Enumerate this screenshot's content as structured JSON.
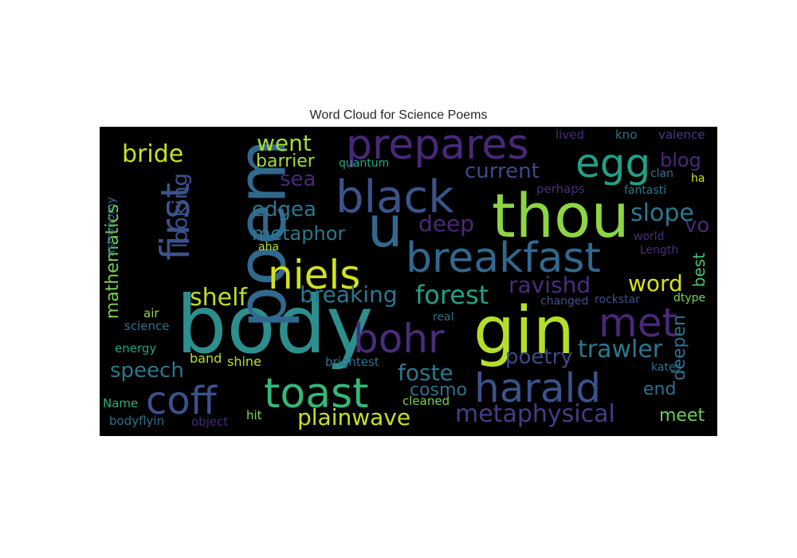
{
  "chart_data": {
    "type": "wordcloud",
    "title": "Word Cloud for Science Poems",
    "background": "#000000",
    "words": [
      {
        "text": "body",
        "size": 1.0,
        "color": "#2c8f8e",
        "rotate": 0
      },
      {
        "text": "thou",
        "size": 0.92,
        "color": "#8dd544",
        "rotate": 0
      },
      {
        "text": "gin",
        "size": 0.9,
        "color": "#b5de2b",
        "rotate": 0
      },
      {
        "text": "poem",
        "size": 0.9,
        "color": "#31688e",
        "rotate": 90
      },
      {
        "text": "u",
        "size": 0.88,
        "color": "#31688e",
        "rotate": 0
      },
      {
        "text": "black",
        "size": 0.7,
        "color": "#3b528b",
        "rotate": 0
      },
      {
        "text": "prepares",
        "size": 0.7,
        "color": "#482878",
        "rotate": 0
      },
      {
        "text": "breakfast",
        "size": 0.68,
        "color": "#31688e",
        "rotate": 0
      },
      {
        "text": "toast",
        "size": 0.66,
        "color": "#35b779",
        "rotate": 0
      },
      {
        "text": "harald",
        "size": 0.64,
        "color": "#3b528b",
        "rotate": 0
      },
      {
        "text": "coff",
        "size": 0.64,
        "color": "#3b528b",
        "rotate": 0
      },
      {
        "text": "met",
        "size": 0.64,
        "color": "#482878",
        "rotate": 0
      },
      {
        "text": "niels",
        "size": 0.6,
        "color": "#d2e21b",
        "rotate": 0
      },
      {
        "text": "egg",
        "size": 0.6,
        "color": "#1fa187",
        "rotate": 0
      },
      {
        "text": "first",
        "size": 0.6,
        "color": "#3b528b",
        "rotate": 90
      },
      {
        "text": "bohr",
        "size": 0.6,
        "color": "#472d7b",
        "rotate": 0
      },
      {
        "text": "metaphysical",
        "size": 0.38,
        "color": "#433e85",
        "rotate": 0
      },
      {
        "text": "forest",
        "size": 0.36,
        "color": "#1fa187",
        "rotate": 0
      },
      {
        "text": "foste",
        "size": 0.36,
        "color": "#2a788e",
        "rotate": 0
      },
      {
        "text": "trawler",
        "size": 0.36,
        "color": "#2a788e",
        "rotate": 0
      },
      {
        "text": "ravishd",
        "size": 0.36,
        "color": "#472d7b",
        "rotate": 0
      },
      {
        "text": "slope",
        "size": 0.36,
        "color": "#2a788e",
        "rotate": 0
      },
      {
        "text": "bride",
        "size": 0.36,
        "color": "#c8e020",
        "rotate": 0
      },
      {
        "text": "shelf",
        "size": 0.36,
        "color": "#bddf26",
        "rotate": 0
      },
      {
        "text": "plainwave",
        "size": 0.33,
        "color": "#c8e020",
        "rotate": 0
      },
      {
        "text": "speech",
        "size": 0.33,
        "color": "#2a788e",
        "rotate": 0
      },
      {
        "text": "breaking",
        "size": 0.33,
        "color": "#2a788e",
        "rotate": 0
      },
      {
        "text": "went",
        "size": 0.33,
        "color": "#a5db36",
        "rotate": 0
      },
      {
        "text": "deep",
        "size": 0.33,
        "color": "#482878",
        "rotate": 0
      },
      {
        "text": "current",
        "size": 0.3,
        "color": "#3e4989",
        "rotate": 0
      },
      {
        "text": "edgea",
        "size": 0.3,
        "color": "#2a788e",
        "rotate": 0
      },
      {
        "text": "poetry",
        "size": 0.3,
        "color": "#3e4989",
        "rotate": 0
      },
      {
        "text": "word",
        "size": 0.3,
        "color": "#d8e219",
        "rotate": 0
      },
      {
        "text": "blog",
        "size": 0.3,
        "color": "#482878",
        "rotate": 0
      },
      {
        "text": "sea",
        "size": 0.3,
        "color": "#482878",
        "rotate": 0
      },
      {
        "text": "looking",
        "size": 0.3,
        "color": "#3b528b",
        "rotate": 90
      },
      {
        "text": "mathematics",
        "size": 0.28,
        "color": "#7ad151",
        "rotate": 90
      },
      {
        "text": "metaphor",
        "size": 0.28,
        "color": "#2a788e",
        "rotate": 0
      },
      {
        "text": "barrier",
        "size": 0.26,
        "color": "#a5db36",
        "rotate": 0
      },
      {
        "text": "cosmo",
        "size": 0.26,
        "color": "#2c728e",
        "rotate": 0
      },
      {
        "text": "meet",
        "size": 0.26,
        "color": "#6ece58",
        "rotate": 0
      },
      {
        "text": "end",
        "size": 0.26,
        "color": "#2c728e",
        "rotate": 0
      },
      {
        "text": "deepen",
        "size": 0.26,
        "color": "#2c728e",
        "rotate": 90
      },
      {
        "text": "best",
        "size": 0.24,
        "color": "#4ac16d",
        "rotate": 90
      },
      {
        "text": "vo",
        "size": 0.3,
        "color": "#482878",
        "rotate": 0
      },
      {
        "text": "shine",
        "size": 0.2,
        "color": "#b5de2b",
        "rotate": 0
      },
      {
        "text": "band",
        "size": 0.18,
        "color": "#b5de2b",
        "rotate": 0
      },
      {
        "text": "hit",
        "size": 0.18,
        "color": "#8fd744",
        "rotate": 0
      },
      {
        "text": "brightest",
        "size": 0.18,
        "color": "#2c728e",
        "rotate": 0
      },
      {
        "text": "cleaned",
        "size": 0.18,
        "color": "#7ad151",
        "rotate": 0
      },
      {
        "text": "energy",
        "size": 0.18,
        "color": "#20a386",
        "rotate": 0
      },
      {
        "text": "science",
        "size": 0.18,
        "color": "#2c728e",
        "rotate": 0
      },
      {
        "text": "air",
        "size": 0.18,
        "color": "#95d840",
        "rotate": 0
      },
      {
        "text": "Name",
        "size": 0.18,
        "color": "#29af7f",
        "rotate": 0
      },
      {
        "text": "bodyflyin",
        "size": 0.18,
        "color": "#2c728e",
        "rotate": 0
      },
      {
        "text": "object",
        "size": 0.18,
        "color": "#482878",
        "rotate": 0
      },
      {
        "text": "changed",
        "size": 0.16,
        "color": "#3b528b",
        "rotate": 0
      },
      {
        "text": "rockstar",
        "size": 0.16,
        "color": "#3b528b",
        "rotate": 0
      },
      {
        "text": "dtype",
        "size": 0.16,
        "color": "#7ad151",
        "rotate": 0
      },
      {
        "text": "kates",
        "size": 0.16,
        "color": "#2c728e",
        "rotate": 0
      },
      {
        "text": "real",
        "size": 0.16,
        "color": "#2c728e",
        "rotate": 0
      },
      {
        "text": "world",
        "size": 0.16,
        "color": "#472d7b",
        "rotate": 0
      },
      {
        "text": "Length",
        "size": 0.16,
        "color": "#472d7b",
        "rotate": 0
      },
      {
        "text": "perhaps",
        "size": 0.18,
        "color": "#472d7b",
        "rotate": 0
      },
      {
        "text": "fantasti",
        "size": 0.16,
        "color": "#2a788e",
        "rotate": 0
      },
      {
        "text": "clan",
        "size": 0.16,
        "color": "#2a788e",
        "rotate": 0
      },
      {
        "text": "ha",
        "size": 0.16,
        "color": "#d8e219",
        "rotate": 0
      },
      {
        "text": "kno",
        "size": 0.18,
        "color": "#2c728e",
        "rotate": 0
      },
      {
        "text": "lived",
        "size": 0.18,
        "color": "#472d7b",
        "rotate": 0
      },
      {
        "text": "valence",
        "size": 0.18,
        "color": "#433e85",
        "rotate": 0
      },
      {
        "text": "quantum",
        "size": 0.16,
        "color": "#22a884",
        "rotate": 0
      },
      {
        "text": "aha",
        "size": 0.16,
        "color": "#b5de2b",
        "rotate": 0
      },
      {
        "text": "astronomy",
        "size": 0.16,
        "color": "#31688e",
        "rotate": 90
      }
    ]
  }
}
